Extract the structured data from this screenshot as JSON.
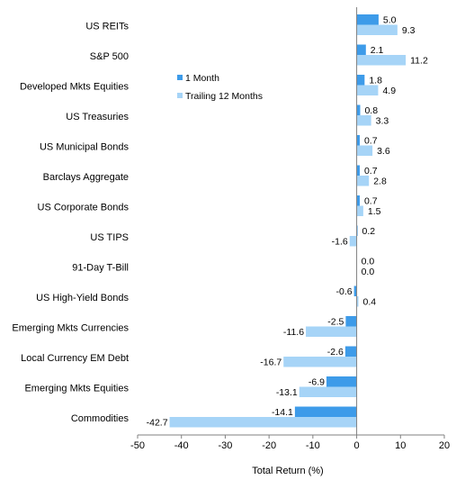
{
  "chart_data": {
    "type": "bar",
    "orientation": "horizontal",
    "categories": [
      "US REITs",
      "S&P 500",
      "Developed Mkts Equities",
      "US Treasuries",
      "US Municipal Bonds",
      "Barclays Aggregate",
      "US Corporate Bonds",
      "US TIPS",
      "91-Day T-Bill",
      "US High-Yield Bonds",
      "Emerging Mkts Currencies",
      "Local Currency EM Debt",
      "Emerging Mkts Equities",
      "Commodities"
    ],
    "series": [
      {
        "name": "1 Month",
        "color": "#3d9be9",
        "values": [
          5.0,
          2.1,
          1.8,
          0.8,
          0.7,
          0.7,
          0.7,
          0.2,
          0.0,
          -0.6,
          -2.5,
          -2.6,
          -6.9,
          -14.1
        ],
        "labels": [
          "5.0",
          "2.1",
          "1.8",
          "0.8",
          "0.7",
          "0.7",
          "0.7",
          "0.2",
          "0.0",
          "-0.6",
          "-2.5",
          "-2.6",
          "-6.9",
          "-14.1"
        ]
      },
      {
        "name": "Trailing 12 Months",
        "color": "#a6d4f7",
        "values": [
          9.3,
          11.2,
          4.9,
          3.3,
          3.6,
          2.8,
          1.5,
          -1.6,
          0.0,
          0.4,
          -11.6,
          -16.7,
          -13.1,
          -42.7
        ],
        "labels": [
          "9.3",
          "11.2",
          "4.9",
          "3.3",
          "3.6",
          "2.8",
          "1.5",
          "-1.6",
          "0.0",
          "0.4",
          "-11.6",
          "-16.7",
          "-13.1",
          "-42.7"
        ]
      }
    ],
    "xlim": [
      -50,
      20
    ],
    "xticks": [
      "-50",
      "-40",
      "-30",
      "-20",
      "-10",
      "0",
      "10",
      "20"
    ],
    "xlabel": "Total Return (%)",
    "legend_position": "top-center",
    "grid": false
  }
}
